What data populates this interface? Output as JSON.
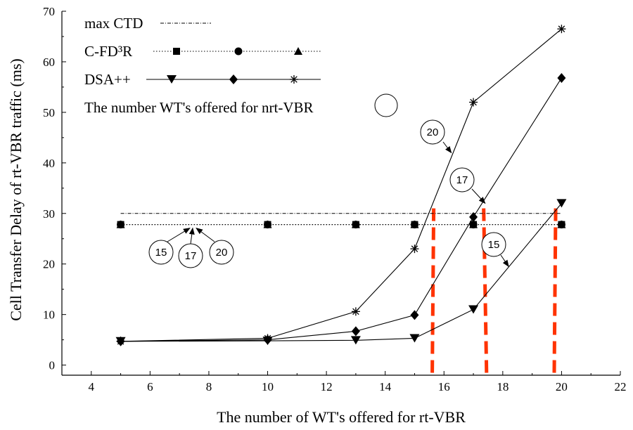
{
  "colors": {
    "axis": "#000000",
    "series": "#000000",
    "threshold_marker": "#ff3300"
  },
  "chart_data": {
    "type": "line",
    "title": "",
    "xlabel": "The number of WT's offered for rt-VBR",
    "ylabel": "Cell Transfer Delay of rt-VBR traffic (ms)",
    "xlim": [
      3,
      22
    ],
    "ylim": [
      -2,
      70
    ],
    "x_ticks": [
      "4",
      "6",
      "8",
      "10",
      "12",
      "14",
      "16",
      "18",
      "20",
      "22"
    ],
    "y_ticks": [
      "0",
      "10",
      "20",
      "30",
      "40",
      "50",
      "60",
      "70"
    ],
    "grid": false,
    "legend": {
      "placement": "top-left",
      "entries": [
        {
          "label": "max CTD",
          "key": "max_ctd"
        },
        {
          "label": "C-FD³R",
          "key": "cfd3r"
        },
        {
          "label": "DSA++",
          "key": "dsa"
        },
        {
          "label": "The number WT's offered for nrt-VBR",
          "key": "circle"
        }
      ]
    },
    "series": [
      {
        "group": "max CTD",
        "marker": "none",
        "line": "dashdot",
        "x": [
          5,
          20
        ],
        "y": [
          30,
          30
        ]
      },
      {
        "group": "C-FD³R",
        "marker": "square",
        "line": "dotted",
        "nrt_wts": "15",
        "x": [
          5,
          10,
          13,
          15,
          17,
          20
        ],
        "y": [
          27.8,
          27.8,
          27.8,
          27.8,
          27.8,
          27.8
        ]
      },
      {
        "group": "C-FD³R",
        "marker": "circle",
        "line": "dotted",
        "nrt_wts": "17",
        "x": [
          5,
          10,
          13,
          15,
          17,
          20
        ],
        "y": [
          27.8,
          27.8,
          27.8,
          27.8,
          27.8,
          27.8
        ]
      },
      {
        "group": "C-FD³R",
        "marker": "triangle-up",
        "line": "dotted",
        "nrt_wts": "20",
        "x": [
          5,
          10,
          13,
          15,
          17,
          20
        ],
        "y": [
          27.8,
          27.8,
          27.8,
          27.8,
          27.8,
          27.8
        ]
      },
      {
        "group": "DSA++",
        "marker": "triangle-down",
        "line": "solid",
        "nrt_wts": "15",
        "x": [
          5,
          10,
          13,
          15,
          17,
          20
        ],
        "y": [
          4.7,
          4.8,
          4.9,
          5.3,
          11.0,
          32.0
        ]
      },
      {
        "group": "DSA++",
        "marker": "diamond",
        "line": "solid",
        "nrt_wts": "17",
        "x": [
          5,
          10,
          13,
          15,
          17,
          20
        ],
        "y": [
          4.7,
          5.0,
          6.7,
          9.9,
          29.3,
          56.8
        ]
      },
      {
        "group": "DSA++",
        "marker": "asterisk",
        "line": "solid",
        "nrt_wts": "20",
        "x": [
          5,
          10,
          13,
          15,
          17,
          20
        ],
        "y": [
          4.7,
          5.3,
          10.6,
          23.0,
          52.0,
          66.5
        ]
      }
    ],
    "threshold_markers": [
      {
        "x_top": 15.65,
        "x_bottom": 15.6,
        "y_top": 31,
        "y_bottom": -2
      },
      {
        "x_top": 17.35,
        "x_bottom": 17.45,
        "y_top": 31,
        "y_bottom": -2
      },
      {
        "x_top": 19.8,
        "x_bottom": 19.75,
        "y_top": 31,
        "y_bottom": -2
      }
    ],
    "annotations": [
      {
        "label": "15",
        "target": [
          7.45,
          27.8
        ]
      },
      {
        "label": "17",
        "target": [
          7.45,
          27.8
        ]
      },
      {
        "label": "20",
        "target": [
          7.45,
          27.8
        ]
      },
      {
        "label": "20",
        "target": [
          16.25,
          42.0
        ]
      },
      {
        "label": "17",
        "target": [
          17.4,
          32.0
        ]
      },
      {
        "label": "15",
        "target": [
          18.2,
          19.5
        ]
      }
    ]
  }
}
